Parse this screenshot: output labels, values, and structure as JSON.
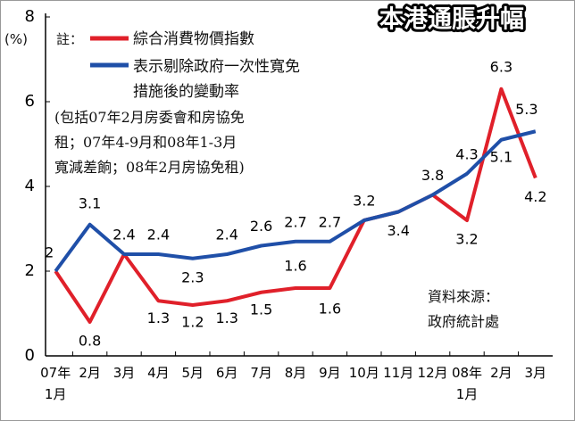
{
  "chart_data": {
    "type": "line",
    "title": "本港通脹升幅",
    "y_label": "(%)",
    "note_label": "註：",
    "footnote": "(包括07年2月房委會和房協免\n租；07年4-9月和08年1-3月\n寬減差餉；08年2月房協免租)",
    "source": "資料來源：\n政府統計處",
    "categories": [
      "07年\n1月",
      "2月",
      "3月",
      "4月",
      "5月",
      "6月",
      "7月",
      "8月",
      "9月",
      "10月",
      "11月",
      "12月",
      "08年\n1月",
      "2月",
      "3月"
    ],
    "series": [
      {
        "name": "綜合消費物價指數",
        "color": "#e0202a",
        "values": [
          2,
          0.8,
          2.4,
          1.3,
          1.2,
          1.3,
          1.5,
          1.6,
          1.6,
          3.2,
          3.4,
          3.8,
          3.2,
          6.3,
          4.2
        ],
        "value_labels": [
          "2",
          "0.8",
          null,
          "1.3",
          "1.2",
          "1.3",
          "1.5",
          "1.6",
          "1.6",
          null,
          null,
          null,
          "3.2",
          "6.3",
          "4.2"
        ]
      },
      {
        "name": "表示剔除政府一次性寬免\n措施後的變動率",
        "color": "#1f4fa8",
        "values": [
          2,
          3.1,
          2.4,
          2.4,
          2.3,
          2.4,
          2.6,
          2.7,
          2.7,
          3.2,
          3.4,
          3.8,
          4.3,
          5.1,
          5.3
        ],
        "value_labels": [
          null,
          "3.1",
          "2.4",
          "2.4",
          "2.3",
          "2.4",
          "2.6",
          "2.7",
          "2.7",
          "3.2",
          "3.4",
          "3.8",
          "4.3",
          "5.1",
          "5.3"
        ]
      }
    ],
    "ylim": [
      0,
      8
    ],
    "yticks": [
      0,
      2,
      4,
      6,
      8
    ],
    "grid": false
  }
}
